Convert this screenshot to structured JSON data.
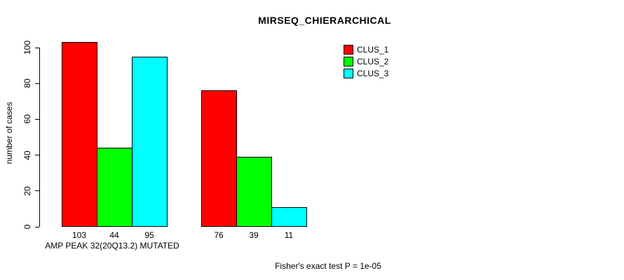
{
  "chart_data": {
    "type": "bar",
    "title": "MIRSEQ_CHIERARCHICAL",
    "ylabel": "number of cases",
    "xlabel": "AMP PEAK 32(20Q13.2) MUTATED",
    "ylim": [
      0,
      100
    ],
    "yticks": [
      0,
      20,
      40,
      60,
      80,
      100
    ],
    "grid": false,
    "background": "#ffffff",
    "axis_color": "#000000",
    "bar_border_color": "#000000",
    "legend_position": "top-right",
    "series": [
      {
        "name": "CLUS_1",
        "color": "#ff0000",
        "values": [
          103,
          76
        ]
      },
      {
        "name": "CLUS_2",
        "color": "#00ff00",
        "values": [
          44,
          39
        ]
      },
      {
        "name": "CLUS_3",
        "color": "#00ffff",
        "values": [
          95,
          11
        ]
      }
    ],
    "bar_value_labels": [
      [
        "103",
        "44",
        "95"
      ],
      [
        "76",
        "39",
        "11"
      ]
    ],
    "annotation": "Fisher's exact test P = 1e-05"
  }
}
